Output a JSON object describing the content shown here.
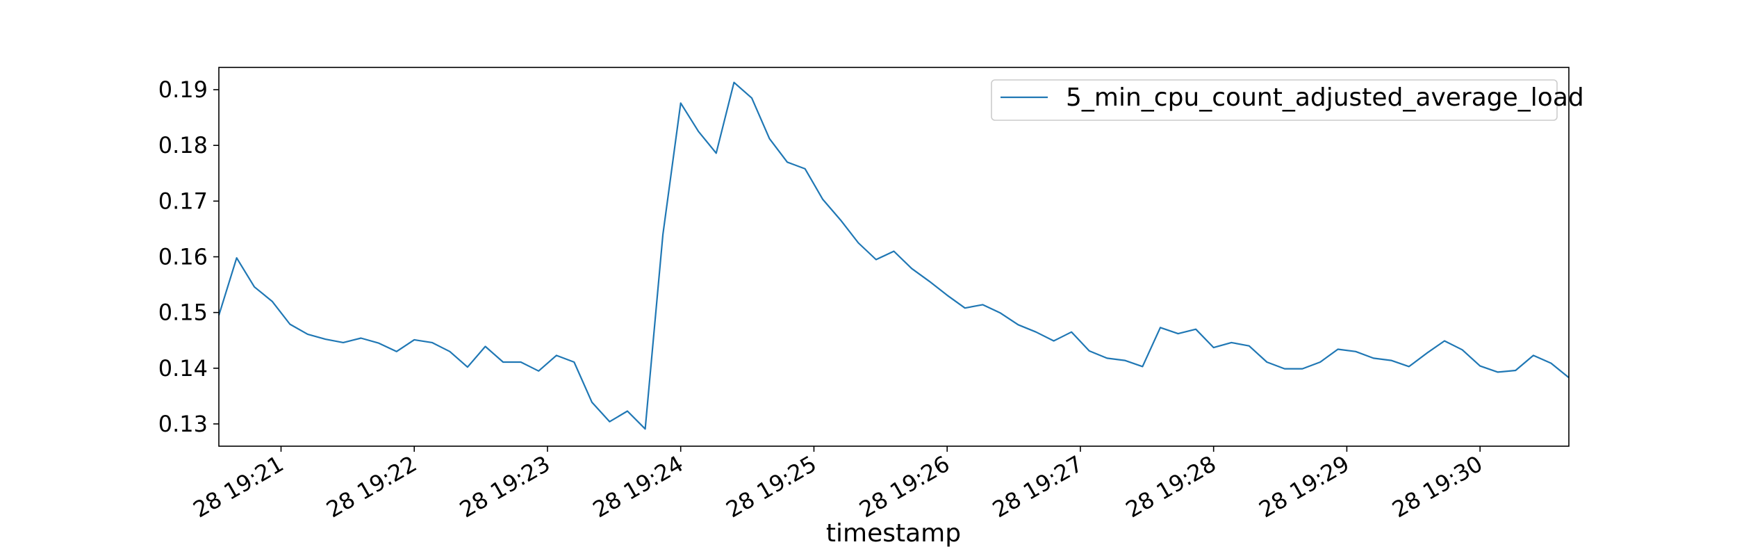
{
  "chart_data": {
    "type": "line",
    "title": "",
    "xlabel": "timestamp",
    "ylabel": "",
    "x_tick_labels": [
      "28 19:21",
      "28 19:22",
      "28 19:23",
      "28 19:24",
      "28 19:25",
      "28 19:26",
      "28 19:27",
      "28 19:28",
      "28 19:29",
      "28 19:30"
    ],
    "y_tick_labels": [
      "0.13",
      "0.14",
      "0.15",
      "0.16",
      "0.17",
      "0.18",
      "0.19"
    ],
    "x_tick_values": [
      "19:21:00",
      "19:22:00",
      "19:23:00",
      "19:24:00",
      "19:25:00",
      "19:26:00",
      "19:27:00",
      "19:28:00",
      "19:29:00",
      "19:30:00"
    ],
    "y_tick_values": [
      0.13,
      0.14,
      0.15,
      0.16,
      0.17,
      0.18,
      0.19
    ],
    "xlim": [
      "19:20:32",
      "19:30:40"
    ],
    "ylim": [
      0.126,
      0.194
    ],
    "grid": false,
    "legend_position": "top-right",
    "series": [
      {
        "name": "5_min_cpu_count_adjusted_average_load",
        "color": "#1f77b4",
        "points": [
          [
            "19:20:32",
            0.1495
          ],
          [
            "19:20:40",
            0.1598
          ],
          [
            "19:20:48",
            0.1546
          ],
          [
            "19:20:56",
            0.152
          ],
          [
            "19:21:04",
            0.1479
          ],
          [
            "19:21:12",
            0.1461
          ],
          [
            "19:21:20",
            0.1452
          ],
          [
            "19:21:28",
            0.1446
          ],
          [
            "19:21:36",
            0.1454
          ],
          [
            "19:21:44",
            0.1445
          ],
          [
            "19:21:52",
            0.143
          ],
          [
            "19:22:00",
            0.1451
          ],
          [
            "19:22:08",
            0.1446
          ],
          [
            "19:22:16",
            0.143
          ],
          [
            "19:22:24",
            0.1402
          ],
          [
            "19:22:32",
            0.1439
          ],
          [
            "19:22:40",
            0.1411
          ],
          [
            "19:22:48",
            0.1411
          ],
          [
            "19:22:56",
            0.1395
          ],
          [
            "19:23:04",
            0.1423
          ],
          [
            "19:23:12",
            0.1411
          ],
          [
            "19:23:20",
            0.1339
          ],
          [
            "19:23:28",
            0.1304
          ],
          [
            "19:23:36",
            0.1323
          ],
          [
            "19:23:44",
            0.1291
          ],
          [
            "19:23:52",
            0.164
          ],
          [
            "19:24:00",
            0.1876
          ],
          [
            "19:24:08",
            0.1825
          ],
          [
            "19:24:16",
            0.1786
          ],
          [
            "19:24:24",
            0.1913
          ],
          [
            "19:24:32",
            0.1885
          ],
          [
            "19:24:40",
            0.1812
          ],
          [
            "19:24:48",
            0.177
          ],
          [
            "19:24:56",
            0.1758
          ],
          [
            "19:25:04",
            0.1703
          ],
          [
            "19:25:12",
            0.1666
          ],
          [
            "19:25:20",
            0.1625
          ],
          [
            "19:25:28",
            0.1595
          ],
          [
            "19:25:36",
            0.161
          ],
          [
            "19:25:44",
            0.1579
          ],
          [
            "19:25:52",
            0.1556
          ],
          [
            "19:26:00",
            0.1531
          ],
          [
            "19:26:08",
            0.1508
          ],
          [
            "19:26:16",
            0.1514
          ],
          [
            "19:26:24",
            0.1499
          ],
          [
            "19:26:32",
            0.1478
          ],
          [
            "19:26:40",
            0.1465
          ],
          [
            "19:26:48",
            0.1449
          ],
          [
            "19:26:56",
            0.1465
          ],
          [
            "19:27:04",
            0.1431
          ],
          [
            "19:27:12",
            0.1418
          ],
          [
            "19:27:20",
            0.1414
          ],
          [
            "19:27:28",
            0.1403
          ],
          [
            "19:27:36",
            0.1473
          ],
          [
            "19:27:44",
            0.1462
          ],
          [
            "19:27:52",
            0.147
          ],
          [
            "19:28:00",
            0.1437
          ],
          [
            "19:28:08",
            0.1446
          ],
          [
            "19:28:16",
            0.144
          ],
          [
            "19:28:24",
            0.1411
          ],
          [
            "19:28:32",
            0.1399
          ],
          [
            "19:28:40",
            0.1399
          ],
          [
            "19:28:48",
            0.1411
          ],
          [
            "19:28:56",
            0.1434
          ],
          [
            "19:29:04",
            0.143
          ],
          [
            "19:29:12",
            0.1418
          ],
          [
            "19:29:20",
            0.1414
          ],
          [
            "19:29:28",
            0.1403
          ],
          [
            "19:29:36",
            0.1427
          ],
          [
            "19:29:44",
            0.1449
          ],
          [
            "19:29:52",
            0.1433
          ],
          [
            "19:30:00",
            0.1404
          ],
          [
            "19:30:08",
            0.1393
          ],
          [
            "19:30:16",
            0.1396
          ],
          [
            "19:30:24",
            0.1423
          ],
          [
            "19:30:32",
            0.1409
          ],
          [
            "19:30:40",
            0.1383
          ]
        ]
      }
    ]
  }
}
